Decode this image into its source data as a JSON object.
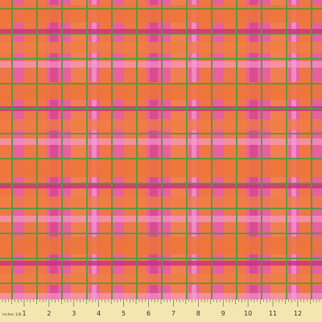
{
  "ruler": {
    "unit_label": "Inches 1/8",
    "numbers": [
      "1",
      "2",
      "3",
      "4",
      "5",
      "6",
      "7",
      "8",
      "9",
      "10",
      "11",
      "12"
    ]
  }
}
